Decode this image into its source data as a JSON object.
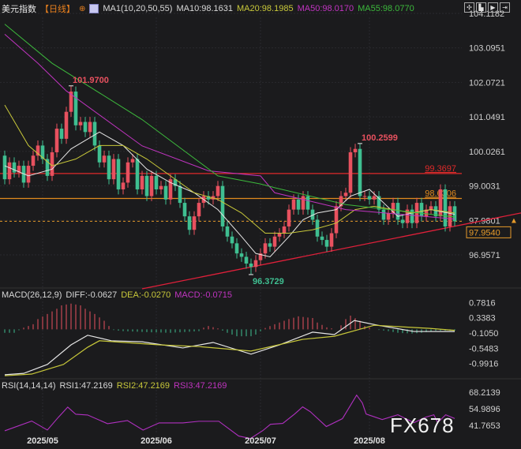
{
  "header": {
    "symbol": "美元指数",
    "period": "【日线】",
    "ma_params": "MA1(10,20,50,55)",
    "ma10": "MA10:98.1631",
    "ma20": "MA20:98.1985",
    "ma50": "MA50:98.0170",
    "ma55": "MA55:98.0770"
  },
  "macd_header": {
    "params": "MACD(26,12,9)",
    "diff": "DIFF:-0.0627",
    "dea": "DEA:-0.0270",
    "macd": "MACD:-0.0715"
  },
  "rsi_header": {
    "params": "RSI(14,14,14)",
    "rsi1": "RSI1:47.2169",
    "rsi2": "RSI2:47.2169",
    "rsi3": "RSI3:47.2169"
  },
  "toolbar_icons": [
    "crosshair-icon",
    "zoom-in-icon",
    "zoom-out-icon",
    "move-right-icon"
  ],
  "watermark": "FX678",
  "colors": {
    "up": "#e8515f",
    "down": "#3fbf91",
    "ma10": "#e6e6e6",
    "ma20": "#c8c83a",
    "ma50": "#c034c0",
    "ma55": "#3cb83c",
    "resistance1": "#e02a2a",
    "resistance2": "#e08a1e",
    "trendline": "#e0203a",
    "rsi": "#b030c0",
    "current": "#e59a2a"
  },
  "chart_data": [
    {
      "type": "candlestick",
      "title": "美元指数 【日线】",
      "x_tick_labels": [
        {
          "index": 8,
          "label": "2025/05"
        },
        {
          "index": 32,
          "label": "2025/06"
        },
        {
          "index": 54,
          "label": "2025/07"
        },
        {
          "index": 77,
          "label": "2025/08"
        }
      ],
      "y_tick_labels": [
        "104.1182",
        "103.0951",
        "102.0721",
        "101.0491",
        "100.0261",
        "99.0031",
        "97.9801",
        "96.9571"
      ],
      "ylim": [
        95.9,
        104.5
      ],
      "close": [
        99.2,
        99.7,
        99.4,
        99.6,
        99.1,
        99.6,
        99.9,
        100.2,
        99.8,
        99.3,
        100.0,
        100.7,
        100.4,
        101.2,
        101.8,
        100.8,
        100.9,
        100.6,
        100.9,
        100.2,
        99.7,
        99.9,
        99.2,
        99.8,
        98.9,
        99.1,
        99.7,
        99.8,
        98.9,
        99.3,
        98.7,
        99.3,
        98.9,
        99.0,
        98.6,
        99.2,
        99.0,
        98.5,
        98.1,
        97.7,
        98.1,
        98.5,
        98.7,
        98.6,
        98.7,
        99.0,
        97.8,
        97.5,
        97.3,
        97.0,
        96.9,
        96.7,
        96.6,
        96.8,
        97.0,
        97.3,
        97.2,
        97.5,
        97.6,
        97.8,
        98.3,
        98.6,
        98.3,
        98.7,
        98.3,
        98.0,
        97.5,
        97.4,
        97.2,
        97.6,
        98.4,
        98.7,
        98.8,
        100.0,
        100.1,
        98.7,
        98.7,
        98.6,
        98.7,
        98.3,
        98.0,
        98.2,
        98.5,
        98.0,
        97.9,
        98.3,
        97.9,
        98.5,
        98.1,
        98.3,
        98.4,
        98.1,
        98.9,
        97.8,
        98.4,
        97.954
      ],
      "first_open": 99.9,
      "extreme_labels": [
        {
          "index": 14,
          "value": 101.97,
          "label": "101.9700"
        },
        {
          "index": 75,
          "value": 100.2599,
          "label": "100.2599"
        },
        {
          "index": 52,
          "value": 96.3729,
          "label": "96.3729"
        }
      ],
      "horizontal_lines": [
        {
          "value": 99.3697,
          "label": "99.3697",
          "style": "solid",
          "color_key": "resistance1"
        },
        {
          "value": 98.6306,
          "label": "98.6306",
          "style": "solid",
          "color_key": "resistance2"
        },
        {
          "value": 97.954,
          "label": "97.9540",
          "style": "dashed",
          "color_key": "current"
        }
      ],
      "trendline": [
        {
          "index": 29,
          "value": 95.95
        },
        {
          "index": 109,
          "value": 98.2
        }
      ],
      "series": [
        {
          "name": "MA10",
          "color_key": "ma10",
          "points": [
            [
              0,
              99.6
            ],
            [
              5,
              99.3
            ],
            [
              10,
              99.5
            ],
            [
              14,
              100.1
            ],
            [
              20,
              100.6
            ],
            [
              25,
              100.2
            ],
            [
              30,
              99.5
            ],
            [
              35,
              99.1
            ],
            [
              40,
              98.8
            ],
            [
              45,
              98.3
            ],
            [
              50,
              97.5
            ],
            [
              53,
              97.0
            ],
            [
              56,
              96.9
            ],
            [
              60,
              97.5
            ],
            [
              63,
              98.0
            ],
            [
              66,
              98.2
            ],
            [
              70,
              98.3
            ],
            [
              73,
              98.7
            ],
            [
              77,
              98.9
            ],
            [
              80,
              98.5
            ],
            [
              83,
              98.1
            ],
            [
              86,
              98.2
            ],
            [
              90,
              98.3
            ],
            [
              95,
              98.16
            ]
          ]
        },
        {
          "name": "MA20",
          "color_key": "ma20",
          "points": [
            [
              0,
              101.4
            ],
            [
              5,
              100.2
            ],
            [
              10,
              99.6
            ],
            [
              15,
              99.8
            ],
            [
              20,
              100.2
            ],
            [
              25,
              100.2
            ],
            [
              30,
              99.8
            ],
            [
              35,
              99.3
            ],
            [
              40,
              98.8
            ],
            [
              45,
              98.6
            ],
            [
              50,
              98.2
            ],
            [
              55,
              97.6
            ],
            [
              60,
              97.6
            ],
            [
              65,
              97.7
            ],
            [
              70,
              97.9
            ],
            [
              74,
              98.3
            ],
            [
              78,
              98.4
            ],
            [
              82,
              98.3
            ],
            [
              86,
              98.2
            ],
            [
              90,
              98.3
            ],
            [
              95,
              98.2
            ]
          ]
        },
        {
          "name": "MA50",
          "color_key": "ma50",
          "points": [
            [
              0,
              103.5
            ],
            [
              7,
              102.64
            ],
            [
              13,
              101.82
            ],
            [
              29,
              100.19
            ],
            [
              43,
              99.45
            ],
            [
              54,
              99.3
            ],
            [
              57,
              98.8
            ],
            [
              72,
              98.3
            ],
            [
              95,
              98.02
            ]
          ]
        },
        {
          "name": "MA55",
          "color_key": "ma55",
          "points": [
            [
              0,
              103.8
            ],
            [
              10,
              102.64
            ],
            [
              29,
              100.97
            ],
            [
              45,
              99.3
            ],
            [
              54,
              99.06
            ],
            [
              57,
              98.95
            ],
            [
              72,
              98.45
            ],
            [
              95,
              98.08
            ]
          ]
        }
      ]
    },
    {
      "type": "macd",
      "y_tick_labels": [
        "0.7816",
        "0.3383",
        "-0.1050",
        "-0.5483",
        "-0.9916"
      ],
      "histogram": [
        [
          0,
          -0.1
        ],
        [
          2,
          -0.1
        ],
        [
          4,
          0.05
        ],
        [
          6,
          0.15
        ],
        [
          7,
          0.3
        ],
        [
          9,
          0.45
        ],
        [
          11,
          0.6
        ],
        [
          12,
          0.7
        ],
        [
          14,
          0.75
        ],
        [
          16,
          0.7
        ],
        [
          17,
          0.6
        ],
        [
          19,
          0.45
        ],
        [
          21,
          0.25
        ],
        [
          22,
          0.1
        ],
        [
          23,
          -0.02
        ],
        [
          25,
          -0.05
        ],
        [
          30,
          -0.08
        ],
        [
          35,
          -0.1
        ],
        [
          40,
          -0.06
        ],
        [
          41,
          -0.05
        ],
        [
          42,
          0.05
        ],
        [
          43,
          0.1
        ],
        [
          45,
          0.03
        ],
        [
          47,
          -0.1
        ],
        [
          49,
          -0.2
        ],
        [
          52,
          -0.2
        ],
        [
          53,
          -0.15
        ],
        [
          55,
          0.04
        ],
        [
          57,
          0.15
        ],
        [
          60,
          0.3
        ],
        [
          62,
          0.38
        ],
        [
          65,
          0.33
        ],
        [
          66,
          0.2
        ],
        [
          68,
          0.06
        ],
        [
          70,
          0.0
        ],
        [
          71,
          0.12
        ],
        [
          72,
          0.3
        ],
        [
          73,
          0.4
        ],
        [
          75,
          0.25
        ],
        [
          76,
          0.1
        ],
        [
          78,
          0.0
        ],
        [
          81,
          -0.05
        ],
        [
          83,
          -0.1
        ],
        [
          86,
          -0.12
        ],
        [
          88,
          -0.1
        ],
        [
          91,
          -0.04
        ],
        [
          95,
          -0.04
        ]
      ],
      "series": [
        {
          "name": "DIFF",
          "color_key": "ma10",
          "points": [
            [
              0,
              -1.32
            ],
            [
              4,
              -1.28
            ],
            [
              9,
              -1.02
            ],
            [
              14,
              -0.45
            ],
            [
              17.5,
              -0.17
            ],
            [
              22.5,
              -0.33
            ],
            [
              29,
              -0.36
            ],
            [
              37.6,
              -0.54
            ],
            [
              44,
              -0.38
            ],
            [
              52,
              -0.72
            ],
            [
              58,
              -0.45
            ],
            [
              65,
              -0.08
            ],
            [
              69.6,
              -0.15
            ],
            [
              73.8,
              0.26
            ],
            [
              78.8,
              0.12
            ],
            [
              86.4,
              -0.06
            ],
            [
              95,
              -0.0627
            ]
          ]
        },
        {
          "name": "DEA",
          "color_key": "ma20",
          "points": [
            [
              0,
              -1.35
            ],
            [
              5.7,
              -1.3
            ],
            [
              12.4,
              -1.02
            ],
            [
              17.5,
              -0.52
            ],
            [
              20,
              -0.33
            ],
            [
              32.6,
              -0.45
            ],
            [
              41,
              -0.5
            ],
            [
              52,
              -0.63
            ],
            [
              62.9,
              -0.29
            ],
            [
              69.6,
              -0.2
            ],
            [
              78,
              0.12
            ],
            [
              89.7,
              0.03
            ],
            [
              95,
              -0.027
            ]
          ]
        }
      ]
    },
    {
      "type": "line",
      "name": "RSI",
      "y_tick_labels": [
        "68.2139",
        "54.9896",
        "41.7653"
      ],
      "series": [
        {
          "name": "RSI3",
          "color_key": "rsi",
          "points": [
            [
              0,
              37.4
            ],
            [
              5.7,
              45.2
            ],
            [
              9,
              38.0
            ],
            [
              11.3,
              48.1
            ],
            [
              13.3,
              56.3
            ],
            [
              15,
              50.6
            ],
            [
              17.5,
              50.0
            ],
            [
              21.7,
              43.1
            ],
            [
              25.9,
              45.6
            ],
            [
              29.2,
              38.0
            ],
            [
              32.6,
              43.7
            ],
            [
              37.6,
              43.7
            ],
            [
              41,
              45.0
            ],
            [
              45.2,
              45.0
            ],
            [
              49.4,
              33.2
            ],
            [
              51.9,
              31.3
            ],
            [
              54.5,
              37.6
            ],
            [
              56.1,
              42.6
            ],
            [
              58.7,
              43.3
            ],
            [
              61.2,
              50.8
            ],
            [
              62.9,
              56.5
            ],
            [
              64.5,
              52.7
            ],
            [
              67.9,
              40.8
            ],
            [
              71.3,
              47.1
            ],
            [
              72.9,
              57.1
            ],
            [
              74.3,
              65.9
            ],
            [
              75.5,
              59.6
            ],
            [
              76.3,
              50.8
            ],
            [
              79.7,
              46.4
            ],
            [
              83,
              50.2
            ],
            [
              86.4,
              43.9
            ],
            [
              88.9,
              48.3
            ],
            [
              90.6,
              50.2
            ],
            [
              91.4,
              43.9
            ],
            [
              93.1,
              50.2
            ],
            [
              95,
              47.2
            ]
          ]
        }
      ]
    }
  ]
}
